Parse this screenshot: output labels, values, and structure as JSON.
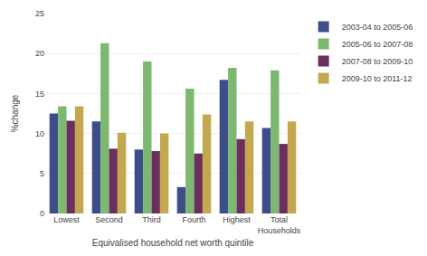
{
  "chart_data": {
    "type": "bar",
    "categories": [
      "Lowest",
      "Second",
      "Third",
      "Fourth",
      "Highest",
      "Total\nHouseholds"
    ],
    "series": [
      {
        "name": "2003-04 to 2005-06",
        "color": "#3d4d8a",
        "values": [
          12.5,
          11.5,
          8.0,
          3.3,
          16.7,
          10.7
        ]
      },
      {
        "name": "2005-06 to 2007-08",
        "color": "#7db870",
        "values": [
          13.4,
          21.3,
          19.0,
          15.6,
          18.2,
          17.9
        ]
      },
      {
        "name": "2007-08 to 2009-10",
        "color": "#6b2f5e",
        "values": [
          11.6,
          8.1,
          7.8,
          7.5,
          9.3,
          8.7
        ]
      },
      {
        "name": "2009-10 to 2011-12",
        "color": "#c4a84f",
        "values": [
          13.4,
          10.1,
          10.0,
          12.4,
          11.5,
          11.5
        ]
      }
    ],
    "xlabel": "Equivalised household net worth quintile",
    "ylabel": "%change",
    "ylim": [
      0,
      25
    ],
    "yticks": [
      0,
      5,
      10,
      15,
      20,
      25
    ],
    "grid": true,
    "legend": "upper right"
  }
}
